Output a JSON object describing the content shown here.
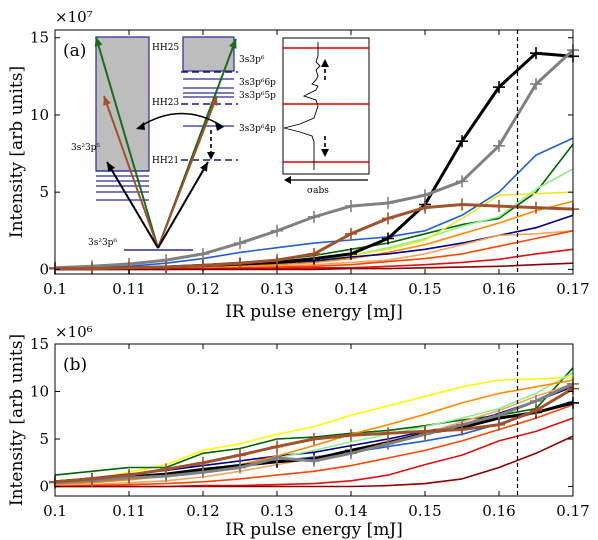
{
  "chart_data": [
    {
      "panel": "(a)",
      "type": "line",
      "xlabel": "IR pulse energy [mJ]",
      "ylabel": "Intensity [arb units]",
      "y_multiplier": "×10⁷",
      "xlim": [
        0.1,
        0.17
      ],
      "ylim": [
        -0.3,
        15.5
      ],
      "x_ticks": [
        "0.1",
        "0.11",
        "0.12",
        "0.13",
        "0.14",
        "0.15",
        "0.16",
        "0.17"
      ],
      "y_ticks": [
        0,
        5,
        10,
        15
      ],
      "vline_x": 0.1625,
      "x": [
        0.1,
        0.105,
        0.11,
        0.115,
        0.12,
        0.125,
        0.13,
        0.135,
        0.14,
        0.145,
        0.15,
        0.155,
        0.16,
        0.165,
        0.17
      ],
      "series": [
        {
          "color": "#000000",
          "width": 3,
          "markers": true,
          "values": [
            0.05,
            0.05,
            0.1,
            0.15,
            0.25,
            0.35,
            0.45,
            0.7,
            1.0,
            2.0,
            4.2,
            8.3,
            11.8,
            14.0,
            13.8
          ]
        },
        {
          "color": "#808080",
          "width": 3,
          "markers": true,
          "values": [
            0.1,
            0.2,
            0.35,
            0.6,
            1.0,
            1.7,
            2.5,
            3.4,
            4.1,
            4.3,
            4.8,
            5.7,
            8.0,
            12.0,
            14.2
          ]
        },
        {
          "color": "#a0522d",
          "width": 3,
          "markers": true,
          "values": [
            0.05,
            0.05,
            0.1,
            0.15,
            0.25,
            0.4,
            0.6,
            1.0,
            2.3,
            3.3,
            4.0,
            4.2,
            4.1,
            4.0,
            3.9
          ]
        },
        {
          "color": "#1f5fd6",
          "width": 1.6,
          "markers": false,
          "values": [
            0.05,
            0.1,
            0.2,
            0.4,
            0.7,
            1.1,
            1.4,
            1.7,
            1.9,
            2.1,
            2.5,
            3.5,
            5.0,
            7.4,
            8.5
          ]
        },
        {
          "color": "#006400",
          "width": 1.6,
          "markers": false,
          "values": [
            0.05,
            0.05,
            0.1,
            0.2,
            0.3,
            0.45,
            0.6,
            0.9,
            1.3,
            1.7,
            2.3,
            2.9,
            3.3,
            5.0,
            8.1
          ]
        },
        {
          "color": "#90ee90",
          "width": 1.6,
          "markers": false,
          "values": [
            0.05,
            0.05,
            0.1,
            0.15,
            0.2,
            0.3,
            0.4,
            0.6,
            0.9,
            1.4,
            2.0,
            2.8,
            3.4,
            5.2,
            6.5
          ]
        },
        {
          "color": "#e8e82a",
          "width": 1.6,
          "markers": false,
          "values": [
            0.05,
            0.05,
            0.1,
            0.15,
            0.2,
            0.3,
            0.4,
            0.6,
            0.9,
            1.3,
            1.9,
            3.3,
            4.8,
            4.9,
            5.0
          ]
        },
        {
          "color": "#ff8c00",
          "width": 1.6,
          "markers": false,
          "values": [
            0.05,
            0.05,
            0.05,
            0.1,
            0.15,
            0.2,
            0.3,
            0.45,
            0.7,
            1.1,
            1.6,
            2.3,
            3.0,
            3.8,
            4.4
          ]
        },
        {
          "color": "#00008b",
          "width": 1.6,
          "markers": false,
          "values": [
            0.05,
            0.05,
            0.1,
            0.15,
            0.2,
            0.3,
            0.4,
            0.55,
            0.8,
            1.0,
            1.3,
            1.7,
            2.2,
            2.7,
            3.5
          ]
        },
        {
          "color": "#f4a460",
          "width": 1.6,
          "markers": false,
          "values": [
            0.05,
            0.05,
            0.05,
            0.05,
            0.1,
            0.15,
            0.2,
            0.3,
            0.45,
            0.6,
            1.0,
            1.6,
            2.2,
            2.3,
            2.5
          ]
        },
        {
          "color": "#ff4500",
          "width": 1.6,
          "markers": false,
          "values": [
            0.0,
            0.0,
            0.05,
            0.05,
            0.05,
            0.1,
            0.15,
            0.2,
            0.3,
            0.5,
            0.7,
            1.0,
            1.5,
            2.0,
            2.5
          ]
        },
        {
          "color": "#e01010",
          "width": 1.6,
          "markers": false,
          "values": [
            0.0,
            0.0,
            0.0,
            0.0,
            0.05,
            0.05,
            0.05,
            0.1,
            0.1,
            0.2,
            0.3,
            0.45,
            0.65,
            1.0,
            1.3
          ]
        },
        {
          "color": "#8b0000",
          "width": 1.6,
          "markers": false,
          "values": [
            0.0,
            0.0,
            0.0,
            0.0,
            0.0,
            0.0,
            0.0,
            0.0,
            0.05,
            0.05,
            0.1,
            0.15,
            0.2,
            0.3,
            0.4
          ]
        }
      ],
      "inset_levels": {
        "harmonics": [
          "HH25",
          "HH23",
          "HH21"
        ],
        "states": [
          "3s3p⁶",
          "3s3p⁶6p",
          "3s3p⁶5p",
          "3s3p⁶4p",
          "3s²3p⁵",
          "3s²3p⁶"
        ],
        "xs_label": "σabs"
      }
    },
    {
      "panel": "(b)",
      "type": "line",
      "xlabel": "IR pulse energy [mJ]",
      "ylabel": "Intensity [arb units]",
      "y_multiplier": "×10⁶",
      "xlim": [
        0.1,
        0.17
      ],
      "ylim": [
        -1.0,
        15.0
      ],
      "x_ticks": [
        "0.1",
        "0.11",
        "0.12",
        "0.13",
        "0.14",
        "0.15",
        "0.16",
        "0.17"
      ],
      "y_ticks": [
        0,
        5,
        10,
        15
      ],
      "vline_x": 0.1625,
      "x": [
        0.1,
        0.105,
        0.11,
        0.115,
        0.12,
        0.125,
        0.13,
        0.135,
        0.14,
        0.145,
        0.15,
        0.155,
        0.16,
        0.165,
        0.17
      ],
      "series": [
        {
          "color": "#000000",
          "width": 3,
          "markers": true,
          "values": [
            0.5,
            0.8,
            1.0,
            1.3,
            1.8,
            2.2,
            2.6,
            2.9,
            3.8,
            4.6,
            5.6,
            6.2,
            7.2,
            7.8,
            8.8
          ]
        },
        {
          "color": "#808080",
          "width": 3,
          "markers": true,
          "values": [
            0.4,
            0.6,
            0.9,
            1.1,
            1.5,
            2.0,
            3.0,
            2.7,
            3.5,
            4.5,
            5.5,
            6.5,
            7.5,
            9.0,
            10.8
          ]
        },
        {
          "color": "#a0522d",
          "width": 3,
          "markers": true,
          "values": [
            0.5,
            0.8,
            1.2,
            1.8,
            2.5,
            3.3,
            4.2,
            5.0,
            5.4,
            5.6,
            5.8,
            6.0,
            6.5,
            8.0,
            10.3
          ]
        },
        {
          "color": "#ffff00",
          "width": 1.6,
          "markers": false,
          "values": [
            0.3,
            0.8,
            1.5,
            2.3,
            3.8,
            4.5,
            5.5,
            6.3,
            7.5,
            8.5,
            9.5,
            10.5,
            11.2,
            11.3,
            11.5
          ]
        },
        {
          "color": "#006400",
          "width": 1.6,
          "markers": false,
          "values": [
            1.2,
            1.6,
            2.0,
            2.0,
            3.5,
            4.0,
            5.0,
            5.2,
            5.6,
            5.9,
            6.4,
            7.0,
            7.5,
            8.2,
            12.5
          ]
        },
        {
          "color": "#00008b",
          "width": 1.6,
          "markers": false,
          "values": [
            0.5,
            0.9,
            1.3,
            1.7,
            2.2,
            2.7,
            3.2,
            3.6,
            4.3,
            5.0,
            5.8,
            6.5,
            7.7,
            9.0,
            10.5
          ]
        },
        {
          "color": "#1f5fd6",
          "width": 1.6,
          "markers": false,
          "values": [
            0.4,
            0.7,
            1.0,
            1.3,
            1.8,
            2.3,
            2.7,
            3.1,
            3.6,
            4.2,
            4.8,
            5.5,
            6.6,
            7.8,
            9.0
          ]
        },
        {
          "color": "#90ee90",
          "width": 1.6,
          "markers": false,
          "values": [
            0.3,
            0.6,
            0.8,
            1.1,
            1.5,
            2.2,
            3.0,
            3.8,
            4.7,
            5.5,
            6.3,
            7.2,
            8.2,
            9.8,
            12.0
          ]
        },
        {
          "color": "#ff8c00",
          "width": 1.6,
          "markers": false,
          "values": [
            0.2,
            0.4,
            0.7,
            1.1,
            1.5,
            2.3,
            3.2,
            4.3,
            5.5,
            6.5,
            7.6,
            8.8,
            9.8,
            10.5,
            11.2
          ]
        },
        {
          "color": "#f4a460",
          "width": 1.6,
          "markers": false,
          "values": [
            0.1,
            0.2,
            0.4,
            0.6,
            1.0,
            1.6,
            2.3,
            3.0,
            3.8,
            4.8,
            5.6,
            6.8,
            8.0,
            9.5,
            10.8
          ]
        },
        {
          "color": "#ff4500",
          "width": 1.6,
          "markers": false,
          "values": [
            0.0,
            0.1,
            0.2,
            0.3,
            0.5,
            0.8,
            1.2,
            1.6,
            2.2,
            3.0,
            3.8,
            4.8,
            6.0,
            7.2,
            8.6
          ]
        },
        {
          "color": "#e01010",
          "width": 1.6,
          "markers": false,
          "values": [
            0.0,
            0.0,
            0.0,
            0.0,
            0.1,
            0.1,
            0.2,
            0.3,
            0.6,
            1.2,
            2.3,
            3.3,
            4.8,
            5.8,
            7.2
          ]
        },
        {
          "color": "#8b0000",
          "width": 1.6,
          "markers": false,
          "values": [
            0.0,
            0.0,
            0.0,
            0.0,
            0.0,
            0.0,
            0.0,
            0.0,
            0.0,
            0.1,
            0.3,
            0.8,
            2.0,
            3.5,
            5.3
          ]
        }
      ]
    }
  ]
}
